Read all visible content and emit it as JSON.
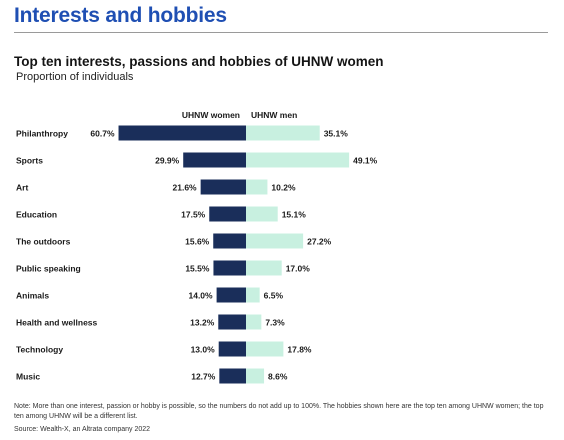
{
  "page": {
    "section_title": "Interests and hobbies",
    "note": "Note: More than one interest, passion or hobby is possible, so the numbers do not add up to 100%. The hobbies shown here are the top ten among UHNW women; the top ten among UHNW will be a different list.",
    "source": "Source: Wealth-X, an Altrata company 2022"
  },
  "chart_data": {
    "type": "bar",
    "orientation": "horizontal-diverging",
    "title": "Top ten interests, passions and hobbies of UHNW women",
    "subtitle": "Proportion of individuals",
    "categories": [
      "Philanthropy",
      "Sports",
      "Art",
      "Education",
      "The outdoors",
      "Public speaking",
      "Animals",
      "Health and wellness",
      "Technology",
      "Music"
    ],
    "series": [
      {
        "name": "UHNW women",
        "values": [
          60.7,
          29.9,
          21.6,
          17.5,
          15.6,
          15.5,
          14.0,
          13.2,
          13.0,
          12.7
        ],
        "labels": [
          "60.7%",
          "29.9%",
          "21.6%",
          "17.5%",
          "15.6%",
          "15.5%",
          "14.0%",
          "13.2%",
          "13.0%",
          "12.7%"
        ],
        "color": "#1a2e5a",
        "direction": "left"
      },
      {
        "name": "UHNW men",
        "values": [
          35.1,
          49.1,
          10.2,
          15.1,
          27.2,
          17.0,
          6.5,
          7.3,
          17.8,
          8.6
        ],
        "labels": [
          "35.1%",
          "49.1%",
          "10.2%",
          "15.1%",
          "27.2%",
          "17.0%",
          "6.5%",
          "7.3%",
          "17.8%",
          "8.6%"
        ],
        "color": "#c8f0e0",
        "direction": "right"
      }
    ],
    "xlim": [
      0,
      100
    ],
    "grid": false,
    "legend": "top-center"
  }
}
